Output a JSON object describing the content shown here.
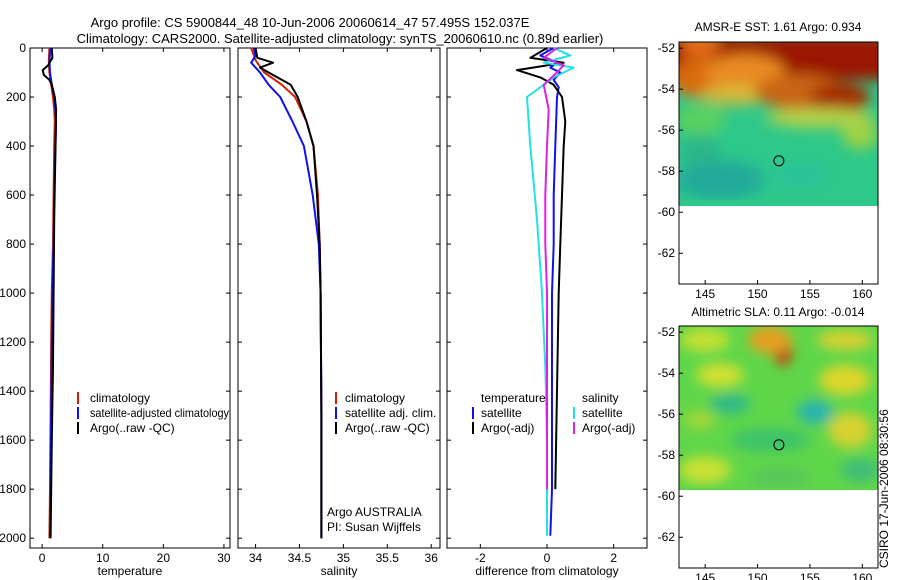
{
  "header": {
    "line1": "Argo profile: CS 5900844_48 10-Jun-2006 20060614_47 57.495S 152.037E",
    "line2": "Climatology: CARS2000. Satellite-adjusted climatology: synTS_20060610.nc (0.89d earlier)"
  },
  "credit": "CSIRO 17-Jun-2006 08:30:56",
  "colors": {
    "climatology": "#cc2200",
    "satellite": "#1111ee",
    "argo": "#000000",
    "satellite_salinity": "#22e0e8",
    "argo_adj_salinity": "#e020e0"
  },
  "chart_data": [
    {
      "type": "line",
      "panel": "temperature",
      "xlabel": "temperature",
      "xlim": [
        -2,
        31
      ],
      "ylim": [
        2040,
        0
      ],
      "xticks": [
        0,
        10,
        20,
        30
      ],
      "yticks": [
        0,
        200,
        400,
        600,
        800,
        1000,
        1200,
        1400,
        1600,
        1800,
        2000
      ],
      "series": [
        {
          "name": "climatology",
          "color": "#cc2200",
          "x": [
            1.2,
            1.1,
            1.2,
            1.5,
            1.8,
            2.0,
            2.1,
            2.0,
            1.9,
            1.8,
            1.6,
            1.5,
            1.4,
            1.3,
            1.2
          ],
          "y": [
            0,
            50,
            100,
            150,
            200,
            250,
            300,
            400,
            600,
            800,
            1000,
            1200,
            1500,
            1800,
            2000
          ]
        },
        {
          "name": "satellite-adjusted climatology",
          "color": "#1111ee",
          "x": [
            1.4,
            1.2,
            1.3,
            1.6,
            2.0,
            2.2,
            2.3,
            2.2,
            2.0,
            1.9,
            1.7,
            1.6,
            1.5,
            1.4,
            1.3
          ],
          "y": [
            0,
            50,
            100,
            150,
            200,
            250,
            300,
            400,
            600,
            800,
            1000,
            1200,
            1500,
            1800,
            2000
          ]
        },
        {
          "name": "Argo(..raw -QC)",
          "color": "#000000",
          "x": [
            1.6,
            1.7,
            1.0,
            0.1,
            0.3,
            1.2,
            1.6,
            2.1,
            2.3,
            2.2,
            2.0,
            1.9,
            1.8,
            1.6,
            1.5,
            1.4
          ],
          "y": [
            0,
            40,
            70,
            90,
            110,
            130,
            150,
            200,
            250,
            400,
            700,
            1000,
            1300,
            1600,
            1800,
            2000
          ]
        }
      ],
      "legend": {
        "position": "lower-right",
        "entries": [
          "climatology",
          "satellite-adjusted climatology",
          "Argo(..raw -QC)"
        ]
      }
    },
    {
      "type": "line",
      "panel": "salinity",
      "xlabel": "salinity",
      "xlim": [
        33.8,
        36.1
      ],
      "ylim": [
        2040,
        0
      ],
      "xticks": [
        34,
        34.5,
        35,
        35.5,
        36
      ],
      "series": [
        {
          "name": "climatology",
          "color": "#cc2200",
          "x": [
            33.95,
            34.0,
            34.1,
            34.3,
            34.45,
            34.58,
            34.66,
            34.71,
            34.73,
            34.74,
            34.75,
            34.75
          ],
          "y": [
            0,
            50,
            100,
            150,
            200,
            300,
            400,
            600,
            800,
            1000,
            1500,
            2000
          ]
        },
        {
          "name": "satellite adj. clim.",
          "color": "#1111ee",
          "x": [
            33.98,
            34.0,
            33.95,
            34.05,
            34.15,
            34.28,
            34.42,
            34.55,
            34.65,
            34.72,
            34.74,
            34.75,
            34.75
          ],
          "y": [
            0,
            30,
            60,
            100,
            150,
            200,
            300,
            400,
            600,
            800,
            1000,
            1500,
            2000
          ]
        },
        {
          "name": "Argo(..raw -QC)",
          "color": "#000000",
          "x": [
            34.0,
            34.02,
            34.2,
            34.05,
            34.2,
            34.4,
            34.48,
            34.58,
            34.66,
            34.7,
            34.73,
            34.74,
            34.75,
            34.75
          ],
          "y": [
            0,
            40,
            60,
            80,
            110,
            150,
            200,
            300,
            400,
            600,
            800,
            1000,
            1500,
            2000
          ]
        }
      ],
      "legend": {
        "position": "lower-right",
        "entries": [
          "climatology",
          "satellite adj. clim.",
          "Argo(..raw -QC)"
        ]
      },
      "annotation": [
        "Argo AUSTRALIA",
        "PI: Susan Wijffels"
      ]
    },
    {
      "type": "line",
      "panel": "difference",
      "xlabel": "difference from climatology",
      "xlim": [
        -3,
        3
      ],
      "ylim": [
        2040,
        0
      ],
      "xticks": [
        -2,
        0,
        2
      ],
      "series": [
        {
          "name": "temperature satellite",
          "color": "#1111ee",
          "x": [
            0.2,
            -0.2,
            0.3,
            0.1,
            0.4,
            0.2,
            0.35,
            0.3,
            0.25,
            0.2,
            0.2,
            0.15,
            0.15,
            0.15,
            0.1
          ],
          "y": [
            0,
            30,
            60,
            80,
            100,
            130,
            160,
            200,
            400,
            600,
            800,
            1000,
            1400,
            1800,
            1990
          ]
        },
        {
          "name": "temperature Argo(-adj)",
          "color": "#000000",
          "x": [
            0.0,
            -0.5,
            0.5,
            -0.9,
            -0.2,
            0.2,
            0.45,
            0.55,
            0.5,
            0.45,
            0.4,
            0.35,
            0.3,
            0.25
          ],
          "y": [
            0,
            40,
            60,
            90,
            120,
            150,
            200,
            300,
            400,
            600,
            800,
            1000,
            1400,
            1800
          ]
        },
        {
          "name": "salinity satellite",
          "color": "#22e0e8",
          "x": [
            0.2,
            0.7,
            -0.1,
            0.8,
            0.2,
            -0.6,
            -0.5,
            -0.3,
            -0.15,
            -0.05,
            0.0,
            0.0
          ],
          "y": [
            0,
            30,
            60,
            80,
            120,
            200,
            400,
            700,
            1000,
            1300,
            1600,
            1990
          ]
        },
        {
          "name": "salinity Argo(-adj)",
          "color": "#e020e0",
          "x": [
            0.3,
            -0.1,
            0.5,
            0.3,
            -0.1,
            0.05,
            0.0,
            -0.05,
            -0.05,
            0.0,
            0.0,
            0.0
          ],
          "y": [
            0,
            40,
            70,
            100,
            150,
            250,
            400,
            600,
            800,
            1000,
            1400,
            1800
          ]
        }
      ],
      "legend": {
        "position": "lower-right",
        "temperature_heading": "temperature",
        "salinity_heading": "salinity",
        "entries": [
          "satellite",
          "Argo(-adj)",
          "satellite",
          "Argo(-adj)"
        ]
      }
    },
    {
      "type": "heatmap",
      "panel": "sst_map",
      "title": "AMSR-E SST: 1.61 Argo: 0.934",
      "xlim": [
        142.5,
        161.5
      ],
      "ylim": [
        -63.5,
        -51.7
      ],
      "xticks": [
        145,
        150,
        155,
        160
      ],
      "yticks": [
        -52,
        -54,
        -56,
        -58,
        -60,
        -62
      ],
      "data_extent_lat": [
        -60,
        -51.7
      ],
      "marker": {
        "lon": 152.037,
        "lat": -57.495
      }
    },
    {
      "type": "heatmap",
      "panel": "sla_map",
      "title": "Altimetric SLA: 0.11 Argo: -0.014",
      "xlim": [
        142.5,
        161.5
      ],
      "ylim": [
        -63.5,
        -51.7
      ],
      "xticks": [
        145,
        150,
        155,
        160
      ],
      "yticks": [
        -52,
        -54,
        -56,
        -58,
        -60,
        -62
      ],
      "data_extent_lat": [
        -60,
        -51.7
      ],
      "marker": {
        "lon": 152.037,
        "lat": -57.495
      }
    }
  ]
}
